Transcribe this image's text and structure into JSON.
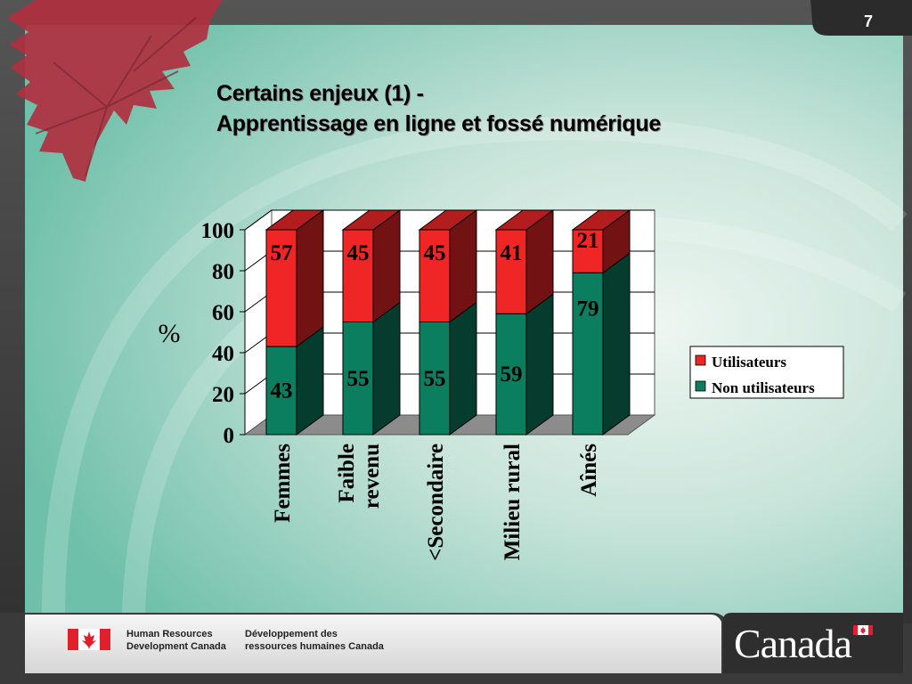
{
  "page_number": "7",
  "title": {
    "line1": "Certains enjeux (1) -",
    "line2": "Apprentissage en ligne et fossé numérique"
  },
  "chart_data": {
    "type": "bar",
    "stacked": true,
    "three_d": true,
    "categories": [
      "Femmes",
      "Faible revenu",
      "<Secondaire",
      "Milieu rural",
      "Aînés"
    ],
    "category_lines": [
      [
        "Femmes"
      ],
      [
        "Faible",
        "revenu"
      ],
      [
        "<Secondaire"
      ],
      [
        "Milieu rural"
      ],
      [
        "Aînés"
      ]
    ],
    "series": [
      {
        "name": "Non utilisateurs",
        "values": [
          43,
          55,
          55,
          59,
          79
        ],
        "color": "#0a7e5e"
      },
      {
        "name": "Utilisateurs",
        "values": [
          57,
          45,
          45,
          41,
          21
        ],
        "color": "#f02626"
      }
    ],
    "ylabel": "%",
    "ylim": [
      0,
      100
    ],
    "yticks": [
      "0",
      "20",
      "40",
      "60",
      "80",
      "100"
    ],
    "grid": true,
    "legend_position": "right"
  },
  "legend": [
    {
      "label": "Utilisateurs",
      "color": "#f02626"
    },
    {
      "label": "Non utilisateurs",
      "color": "#0a7e5e"
    }
  ],
  "footer": {
    "en_line1": "Human Resources",
    "en_line2": "Development Canada",
    "fr_line1": "Développement des",
    "fr_line2": "ressources humaines Canada",
    "wordmark": "Canada"
  }
}
